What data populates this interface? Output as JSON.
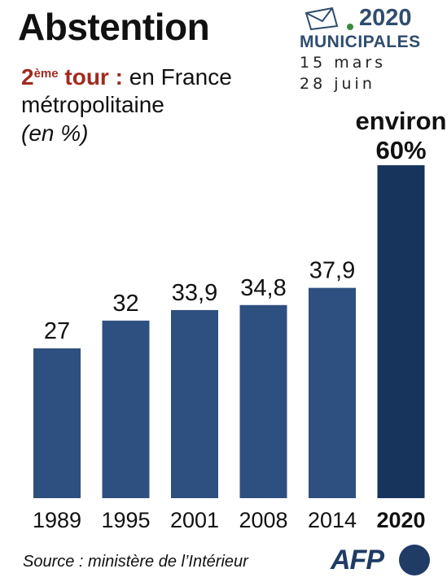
{
  "header": {
    "title": "Abstention",
    "subtitle_ordinal": "2",
    "subtitle_sup": "ème",
    "subtitle_tour": "tour :",
    "subtitle_rest": " en France",
    "subtitle_line2": "métropolitaine",
    "unit": "(en %)"
  },
  "badge": {
    "year": "2020",
    "title": "MUNICIPALES",
    "date1": "15 mars",
    "date2": "28 juin"
  },
  "chart_data": {
    "type": "bar",
    "title": "Abstention",
    "categories": [
      "1989",
      "1995",
      "2001",
      "2008",
      "2014",
      "2020"
    ],
    "values": [
      27,
      32,
      33.9,
      34.8,
      37.9,
      60
    ],
    "value_labels": [
      "27",
      "32",
      "33,9",
      "34,8",
      "37,9",
      "60%"
    ],
    "highlight_prefix": "environ",
    "highlight_index": 5,
    "ylim": [
      0,
      60
    ],
    "colors": {
      "bar": "#2e5080",
      "highlight": "#16345c"
    },
    "grid": false,
    "legend": "none"
  },
  "footer": {
    "source": "Source : ministère de l’Intérieur",
    "logo_text": "AFP"
  }
}
